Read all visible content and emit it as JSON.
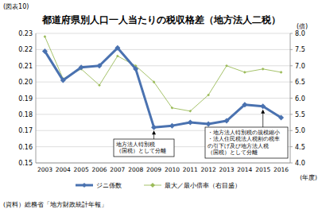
{
  "chart_data": {
    "type": "line",
    "label": "(図表10)",
    "title": "都道府県別人口一人当たりの税収格差（地方法人二税）",
    "y2_label": "(倍)",
    "x_label": "(年度)",
    "source": "(資料）総務省「地方財政統計年報」",
    "categories": [
      "2003",
      "2004",
      "2005",
      "2006",
      "2007",
      "2008",
      "2009",
      "2010",
      "2011",
      "2012",
      "2013",
      "2014",
      "2015",
      "2016"
    ],
    "series": [
      {
        "name": "ジニ係数",
        "color": "#4a72b0",
        "marker": "diamond",
        "line_style": "solid",
        "values": [
          0.219,
          0.201,
          0.209,
          0.21,
          0.221,
          0.208,
          0.172,
          0.173,
          0.175,
          0.174,
          0.176,
          0.186,
          0.185,
          0.178
        ]
      },
      {
        "name": "最大／最小倍率（右目盛）",
        "color": "#9bbb59",
        "marker": "diamond",
        "line_style": "solid",
        "axis": "y2",
        "values": [
          7.9,
          6.6,
          6.9,
          6.4,
          7.3,
          7.0,
          6.5,
          5.7,
          5.6,
          6.1,
          7.0,
          6.8,
          6.9,
          6.8
        ]
      }
    ],
    "ylim": [
      0.15,
      0.23
    ],
    "yticks": [
      0.15,
      0.16,
      0.17,
      0.18,
      0.19,
      {
        "value": 0.2,
        "label": "0.20"
      },
      0.21,
      0.22,
      0.23
    ],
    "y2lim": [
      4,
      8
    ],
    "y2ticks": [
      {
        "value": 4,
        "label": "4.0"
      },
      {
        "value": 4.5,
        "label": "4.5"
      },
      {
        "value": 5,
        "label": "5.0"
      },
      {
        "value": 5.5,
        "label": "5.5"
      },
      {
        "value": 6,
        "label": "6.0"
      },
      {
        "value": 6.5,
        "label": "6.5"
      },
      {
        "value": 7,
        "label": "7.0"
      },
      {
        "value": 7.5,
        "label": "7.5"
      },
      {
        "value": 8,
        "label": "8.0"
      }
    ],
    "grid": true,
    "legend": "bottom",
    "annotations": [
      {
        "x": "2009",
        "lines": [
          "地方法人特別税",
          "（国税）として分離"
        ]
      },
      {
        "x": "2015",
        "lines": [
          "・地方法人特別税の規模縮小",
          "・法人住民税法人税割の税率",
          "の引下げ及び地方法人税",
          "（国税）として分離"
        ]
      }
    ]
  }
}
